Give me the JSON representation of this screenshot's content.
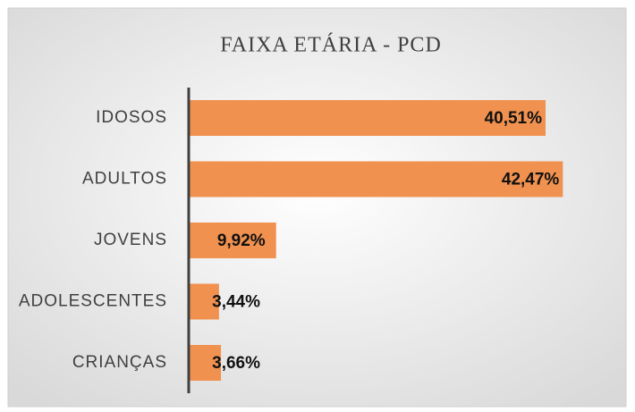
{
  "chart_data": {
    "type": "barh",
    "title": "FAIXA ETÁRIA - PCD",
    "categories": [
      "IDOSOS",
      "ADULTOS",
      "JOVENS",
      "ADOLESCENTES",
      "CRIANÇAS"
    ],
    "values": [
      40.51,
      42.47,
      9.92,
      3.44,
      3.66
    ],
    "value_labels": [
      "40,51%",
      "42,47%",
      "9,92%",
      "3,44%",
      "3,66%"
    ],
    "color": "#f0914f"
  }
}
